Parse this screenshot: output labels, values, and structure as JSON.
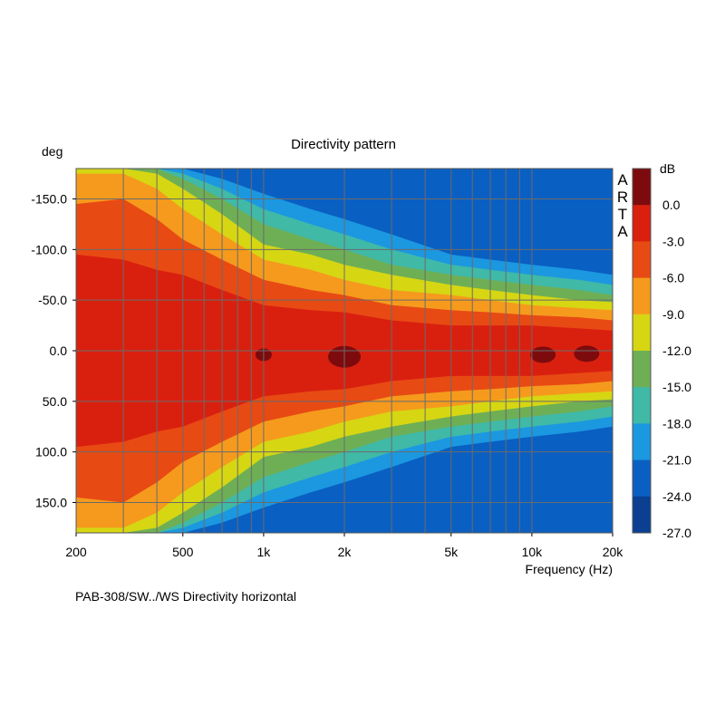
{
  "chart_data": {
    "type": "heatmap",
    "title": "Directivity pattern",
    "ylabel": "deg",
    "xlabel": "Frequency (Hz)",
    "caption": "PAB-308/SW../WS  Directivity horizontal",
    "brand_letters": [
      "A",
      "R",
      "T",
      "A"
    ],
    "x_scale": "log",
    "xlim": [
      200,
      20000
    ],
    "ylim": [
      -180,
      180
    ],
    "x_ticks": [
      {
        "value": 200,
        "label": "200"
      },
      {
        "value": 500,
        "label": "500"
      },
      {
        "value": 1000,
        "label": "1k"
      },
      {
        "value": 2000,
        "label": "2k"
      },
      {
        "value": 5000,
        "label": "5k"
      },
      {
        "value": 10000,
        "label": "10k"
      },
      {
        "value": 20000,
        "label": "20k"
      }
    ],
    "y_ticks": [
      {
        "value": -150,
        "label": "-150.0"
      },
      {
        "value": -100,
        "label": "-100.0"
      },
      {
        "value": -50,
        "label": "-50.0"
      },
      {
        "value": 0,
        "label": "0.0"
      },
      {
        "value": 50,
        "label": "50.0"
      },
      {
        "value": 100,
        "label": "100.0"
      },
      {
        "value": 150,
        "label": "150.0"
      }
    ],
    "grid": true,
    "colorbar": {
      "unit": "dB",
      "labels": [
        "0.0",
        "-3.0",
        "-6.0",
        "-9.0",
        "-12.0",
        "-15.0",
        "-18.0",
        "-21.0",
        "-24.0",
        "-27.0"
      ],
      "levels": [
        3,
        0,
        -3,
        -6,
        -9,
        -12,
        -15,
        -18,
        -21,
        -24,
        -27
      ],
      "colors": [
        "#7d0b0e",
        "#d9200f",
        "#e84a14",
        "#f59a1d",
        "#d6d613",
        "#6eaf55",
        "#40b9a7",
        "#1b98e0",
        "#0a5fc2",
        "#0a3f92"
      ]
    },
    "halfwidth_deg": {
      "freq_hz": [
        200,
        300,
        400,
        500,
        700,
        1000,
        1500,
        2000,
        3000,
        5000,
        7000,
        10000,
        15000,
        20000
      ],
      "minus3dB": [
        95,
        90,
        80,
        75,
        60,
        45,
        40,
        38,
        30,
        25,
        25,
        25,
        22,
        20
      ],
      "minus6dB": [
        145,
        150,
        130,
        110,
        90,
        70,
        60,
        55,
        45,
        40,
        38,
        35,
        33,
        30
      ],
      "minus9dB": [
        175,
        175,
        160,
        140,
        115,
        90,
        80,
        70,
        60,
        55,
        50,
        45,
        42,
        40
      ],
      "minus12dB": [
        180,
        180,
        175,
        160,
        135,
        105,
        95,
        85,
        75,
        65,
        60,
        55,
        50,
        48
      ],
      "minus15dB": [
        180,
        180,
        180,
        170,
        150,
        125,
        110,
        100,
        85,
        75,
        70,
        65,
        60,
        55
      ],
      "minus18dB": [
        180,
        180,
        180,
        175,
        160,
        140,
        125,
        115,
        100,
        85,
        80,
        75,
        70,
        65
      ],
      "minus21dB": [
        180,
        180,
        180,
        180,
        170,
        155,
        140,
        130,
        115,
        95,
        90,
        85,
        80,
        75
      ]
    }
  }
}
